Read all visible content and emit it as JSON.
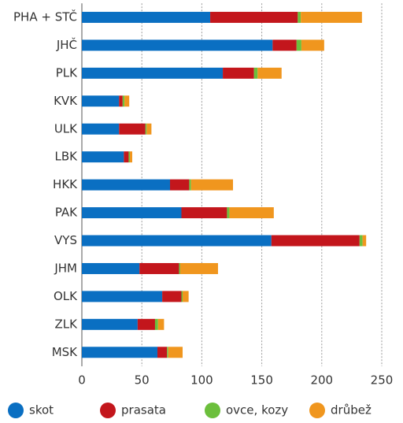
{
  "chart_data": {
    "type": "bar",
    "orientation": "horizontal",
    "stacked": true,
    "categories": [
      "PHA + STČ",
      "JHČ",
      "PLK",
      "KVK",
      "ULK",
      "LBK",
      "HKK",
      "PAK",
      "VYS",
      "JHM",
      "OLK",
      "ZLK",
      "MSK"
    ],
    "series": [
      {
        "name": "skot",
        "color": "#0a6fc2",
        "values": [
          107,
          159,
          117.5,
          31,
          31,
          35,
          73.5,
          83,
          158,
          48,
          67,
          46.5,
          63
        ]
      },
      {
        "name": "prasata",
        "color": "#c3161c",
        "values": [
          73,
          20,
          26,
          3,
          22,
          4,
          16,
          38,
          73.5,
          33,
          16,
          14.5,
          8
        ]
      },
      {
        "name": "ovce, kozy",
        "color": "#6cbf3c",
        "values": [
          2.5,
          4,
          3,
          1.5,
          1,
          1,
          1.5,
          2,
          2.5,
          1,
          1,
          2.5,
          1
        ]
      },
      {
        "name": "drůbež",
        "color": "#f0961e",
        "values": [
          51,
          19,
          20,
          4,
          4,
          2,
          35,
          37,
          3,
          31.5,
          5,
          5,
          12
        ]
      }
    ],
    "xlim": [
      0,
      250
    ],
    "xticks": [
      0,
      50,
      100,
      150,
      200,
      250
    ],
    "grid": true,
    "legend": "bottom"
  }
}
